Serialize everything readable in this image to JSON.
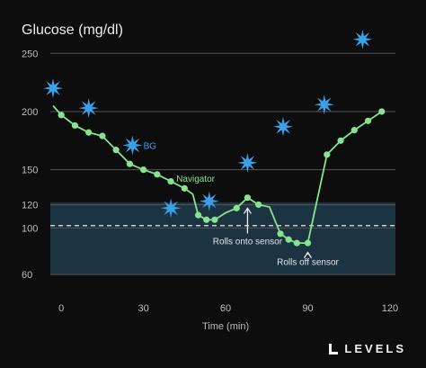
{
  "chart_data": {
    "type": "line",
    "title": "Glucose (mg/dl)",
    "xlabel": "Time (min)",
    "ylabel": "",
    "xlim": [
      -4,
      122
    ],
    "ylim": [
      50,
      268
    ],
    "xticks": [
      0,
      30,
      60,
      90,
      120
    ],
    "yticks": [
      60,
      100,
      120,
      150,
      200,
      250
    ],
    "target_range": [
      60,
      122
    ],
    "target_line": 102,
    "grid": "horizontal",
    "series": [
      {
        "name": "Navigator",
        "color": "#86e38f",
        "x": [
          -3,
          0,
          5,
          10,
          15,
          20,
          25,
          30,
          35,
          40,
          45,
          48,
          50,
          53,
          56,
          60,
          64,
          68,
          72,
          76,
          80,
          83,
          86,
          90,
          97,
          102,
          107,
          112,
          117
        ],
        "y": [
          205,
          197,
          188,
          182,
          179,
          167,
          155,
          150,
          146,
          140,
          134,
          129,
          111,
          107,
          107,
          113,
          117,
          126,
          120,
          118,
          95,
          90,
          87,
          87,
          163,
          175,
          184,
          192,
          200
        ],
        "markers_x": [
          0,
          5,
          10,
          15,
          20,
          25,
          30,
          35,
          40,
          45,
          50,
          53,
          56,
          64,
          68,
          72,
          80,
          83,
          86,
          90,
          97,
          102,
          107,
          112,
          117
        ],
        "markers_y": [
          197,
          188,
          182,
          179,
          167,
          155,
          150,
          146,
          140,
          134,
          111,
          107,
          107,
          117,
          126,
          120,
          95,
          90,
          87,
          87,
          163,
          175,
          184,
          192,
          200
        ]
      },
      {
        "name": "BG",
        "color": "#3aa0e8",
        "x": [
          -3,
          10,
          26,
          40,
          54,
          68,
          81,
          96,
          110
        ],
        "y": [
          220,
          203,
          171,
          117,
          123,
          156,
          187,
          206,
          262
        ]
      }
    ],
    "annotations": [
      {
        "text": "Rolls onto sensor",
        "x": 68,
        "y": 120,
        "text_y": 86
      },
      {
        "text": "Rolls off sensor",
        "x": 90,
        "y": 82,
        "text_y": 68
      }
    ]
  },
  "brand": {
    "name": "LEVELS"
  }
}
